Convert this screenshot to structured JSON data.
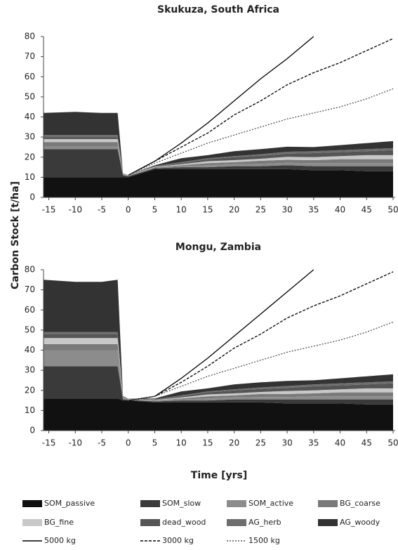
{
  "axis_labels": {
    "y": "Carbon Stock [t/ha]",
    "x": "Time [yrs]"
  },
  "chart_data": [
    {
      "type": "area",
      "title": "Skukuza, South Africa",
      "x": [
        -16,
        -10,
        -5,
        -2,
        -1,
        0,
        5,
        10,
        15,
        20,
        25,
        30,
        35,
        40,
        45,
        50
      ],
      "xlim": [
        -16,
        50
      ],
      "xticks": [
        -15,
        -10,
        -5,
        0,
        5,
        10,
        15,
        20,
        25,
        30,
        35,
        40,
        45,
        50
      ],
      "ylim": [
        0,
        80
      ],
      "yticks": [
        0,
        10,
        20,
        30,
        40,
        50,
        60,
        70,
        80
      ],
      "series": [
        {
          "name": "SOM_passive",
          "color": "#111111",
          "values": [
            10,
            10,
            10,
            10,
            10,
            10,
            14,
            14,
            14,
            14,
            14,
            14,
            13.5,
            13.5,
            13,
            13
          ]
        },
        {
          "name": "SOM_slow",
          "color": "#3a3a3a",
          "values": [
            14,
            14,
            14,
            14,
            1,
            0.5,
            0.5,
            1,
            1,
            1.5,
            1.5,
            2,
            2,
            2,
            2.5,
            2.5
          ]
        },
        {
          "name": "SOM_active",
          "color": "#8c8c8c",
          "values": [
            1.5,
            1.5,
            1.5,
            1.5,
            0.2,
            0.2,
            0.3,
            0.5,
            1,
            1,
            1.2,
            1.2,
            1.5,
            1.5,
            1.5,
            1.5
          ]
        },
        {
          "name": "BG_coarse",
          "color": "#7a7a7a",
          "values": [
            2,
            2,
            2,
            2,
            0.2,
            0.1,
            0.2,
            0.5,
            1,
            1,
            1.5,
            1.5,
            1.5,
            2,
            2,
            2
          ]
        },
        {
          "name": "BG_fine",
          "color": "#c8c8c8",
          "values": [
            1.5,
            1.5,
            1.5,
            1.5,
            0.2,
            0.1,
            0.2,
            0.5,
            1,
            1,
            1,
            1.5,
            1.5,
            1.5,
            2,
            2
          ]
        },
        {
          "name": "dead_wood",
          "color": "#555555",
          "values": [
            1,
            1,
            1,
            1,
            0.2,
            0.1,
            0.2,
            0.5,
            1,
            1.5,
            1.5,
            1.5,
            2,
            2,
            2,
            2.5
          ]
        },
        {
          "name": "AG_herb",
          "color": "#6e6e6e",
          "values": [
            1,
            1,
            1,
            1,
            0.2,
            0.1,
            0.2,
            0.5,
            0.5,
            0.5,
            0.8,
            1,
            1,
            1,
            1,
            1
          ]
        },
        {
          "name": "AG_woody",
          "color": "#333333",
          "values": [
            11,
            11.5,
            11,
            11,
            0,
            0,
            0.4,
            2,
            1.5,
            2.5,
            2.5,
            2.5,
            2,
            2.5,
            3,
            3.5
          ]
        }
      ],
      "line_series": [
        {
          "name": "5000 kg",
          "color": "#000000",
          "dash": "none",
          "values": [
            null,
            null,
            null,
            null,
            null,
            11,
            18,
            27,
            37,
            48,
            59,
            69,
            80,
            null,
            null,
            null
          ]
        },
        {
          "name": "3000 kg",
          "color": "#000000",
          "dash": "4,2",
          "values": [
            null,
            null,
            null,
            null,
            null,
            11,
            18,
            25,
            32,
            41,
            48,
            56,
            62,
            67,
            73,
            79
          ]
        },
        {
          "name": "1500 kg",
          "color": "#555555",
          "dash": "2,2",
          "values": [
            null,
            null,
            null,
            null,
            null,
            11,
            17,
            22,
            27,
            31,
            35,
            39,
            42,
            45,
            49,
            54
          ]
        }
      ]
    },
    {
      "type": "area",
      "title": "Mongu, Zambia",
      "x": [
        -16,
        -10,
        -5,
        -2,
        -1,
        0,
        5,
        10,
        15,
        20,
        25,
        30,
        35,
        40,
        45,
        50
      ],
      "xlim": [
        -16,
        50
      ],
      "xticks": [
        -15,
        -10,
        -5,
        0,
        5,
        10,
        15,
        20,
        25,
        30,
        35,
        40,
        45,
        50
      ],
      "ylim": [
        0,
        80
      ],
      "yticks": [
        0,
        10,
        20,
        30,
        40,
        50,
        60,
        70,
        80
      ],
      "series": [
        {
          "name": "SOM_passive",
          "color": "#111111",
          "values": [
            16,
            16,
            16,
            16,
            15,
            15,
            14,
            14,
            14,
            14,
            14,
            13.5,
            13.5,
            13.5,
            13,
            13
          ]
        },
        {
          "name": "SOM_slow",
          "color": "#3a3a3a",
          "values": [
            16,
            16,
            16,
            16,
            0.5,
            0.3,
            0.5,
            1,
            1,
            1.5,
            1.5,
            2,
            2,
            2,
            2.5,
            2.5
          ]
        },
        {
          "name": "SOM_active",
          "color": "#8c8c8c",
          "values": [
            8,
            8,
            8,
            8,
            0.5,
            0.2,
            0.3,
            0.5,
            1,
            1,
            1.2,
            1.2,
            1.5,
            1.5,
            1.5,
            1.5
          ]
        },
        {
          "name": "BG_coarse",
          "color": "#7a7a7a",
          "values": [
            3,
            3,
            3,
            3,
            0.3,
            0.1,
            0.2,
            0.5,
            1,
            1,
            1.5,
            1.5,
            1.5,
            2,
            2,
            2
          ]
        },
        {
          "name": "BG_fine",
          "color": "#c8c8c8",
          "values": [
            3,
            3,
            3,
            3,
            0.3,
            0.1,
            0.2,
            0.5,
            1,
            1,
            1,
            1.5,
            1.5,
            1.5,
            2,
            2
          ]
        },
        {
          "name": "dead_wood",
          "color": "#555555",
          "values": [
            2,
            2,
            2,
            2,
            0.3,
            0.1,
            0.2,
            0.5,
            1,
            1.5,
            1.5,
            1.5,
            2,
            2,
            2,
            2.5
          ]
        },
        {
          "name": "AG_herb",
          "color": "#6e6e6e",
          "values": [
            1,
            1,
            1,
            1,
            0.3,
            0.1,
            0.2,
            0.5,
            0.5,
            0.5,
            0.8,
            1,
            1,
            1,
            1,
            1
          ]
        },
        {
          "name": "AG_woody",
          "color": "#333333",
          "values": [
            26,
            25,
            25,
            26,
            0,
            0,
            0.4,
            2,
            1.5,
            2.5,
            2.5,
            2.5,
            2,
            2.5,
            3,
            3.5
          ]
        }
      ],
      "line_series": [
        {
          "name": "5000 kg",
          "color": "#000000",
          "dash": "none",
          "values": [
            null,
            null,
            null,
            null,
            null,
            15,
            17,
            26,
            36,
            47,
            58,
            69,
            80,
            null,
            null,
            null
          ]
        },
        {
          "name": "3000 kg",
          "color": "#000000",
          "dash": "4,2",
          "values": [
            null,
            null,
            null,
            null,
            null,
            15,
            17,
            24,
            32,
            41,
            48,
            56,
            62,
            67,
            73,
            79
          ]
        },
        {
          "name": "1500 kg",
          "color": "#555555",
          "dash": "2,2",
          "values": [
            null,
            null,
            null,
            null,
            null,
            15,
            17,
            22,
            27,
            31,
            35,
            39,
            42,
            45,
            49,
            54
          ]
        }
      ]
    }
  ]
}
